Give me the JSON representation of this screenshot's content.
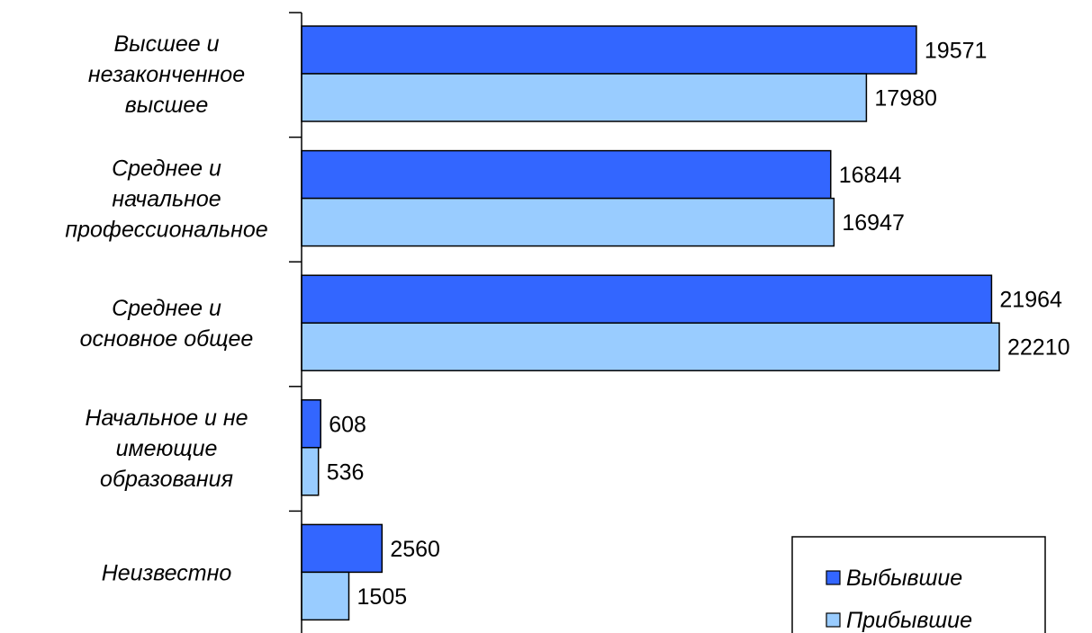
{
  "chart_data": {
    "type": "bar",
    "orientation": "horizontal",
    "categories": [
      [
        "Высшее и",
        "незаконченное",
        "высшее"
      ],
      [
        "Среднее и",
        "начальное",
        "профессиональное"
      ],
      [
        "Среднее и",
        "основное общее"
      ],
      [
        "Начальное и не",
        "имеющие",
        "образования"
      ],
      [
        "Неизвестно"
      ]
    ],
    "series": [
      {
        "name": "Выбывшие",
        "color": "#3366ff",
        "values": [
          19571,
          16844,
          21964,
          608,
          2560
        ]
      },
      {
        "name": "Прибывшие",
        "color": "#99ccff",
        "values": [
          17980,
          16947,
          22210,
          536,
          1505
        ]
      }
    ],
    "xlim": [
      0,
      23000
    ],
    "grid": false,
    "legend_position": "bottom-right",
    "title": "",
    "xlabel": "",
    "ylabel": ""
  }
}
